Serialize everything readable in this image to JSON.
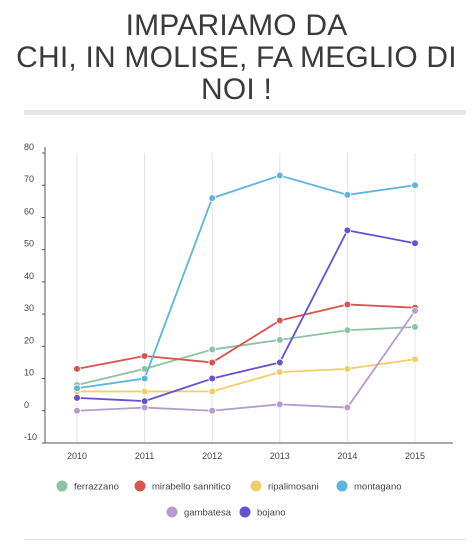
{
  "chart_data": {
    "type": "line",
    "title_lines": [
      "IMPARIAMO DA",
      "CHI, IN MOLISE, FA MEGLIO DI",
      "NOI !"
    ],
    "x": [
      "2010",
      "2011",
      "2012",
      "2013",
      "2014",
      "2015"
    ],
    "ylim": [
      -10,
      80
    ],
    "yticks": [
      80,
      70,
      60,
      50,
      40,
      30,
      20,
      10,
      0,
      -10
    ],
    "grid": "vertical",
    "legend_position": "bottom",
    "series": [
      {
        "name": "ferrazzano",
        "color": "#8cc4a3",
        "values": [
          8,
          13,
          19,
          22,
          25,
          26
        ]
      },
      {
        "name": "mirabello sannitico",
        "color": "#d9534f",
        "values": [
          13,
          17,
          15,
          28,
          33,
          32
        ]
      },
      {
        "name": "ripalimosani",
        "color": "#f2cd6a",
        "values": [
          6,
          6,
          6,
          12,
          13,
          16
        ]
      },
      {
        "name": "montagano",
        "color": "#5bb5dd",
        "values": [
          7,
          10,
          66,
          73,
          67,
          70
        ]
      },
      {
        "name": "gambatesa",
        "color": "#b59ccd",
        "values": [
          0,
          1,
          0,
          2,
          1,
          31
        ]
      },
      {
        "name": "bojano",
        "color": "#6a4fd1",
        "values": [
          4,
          3,
          10,
          15,
          56,
          52
        ]
      }
    ]
  }
}
